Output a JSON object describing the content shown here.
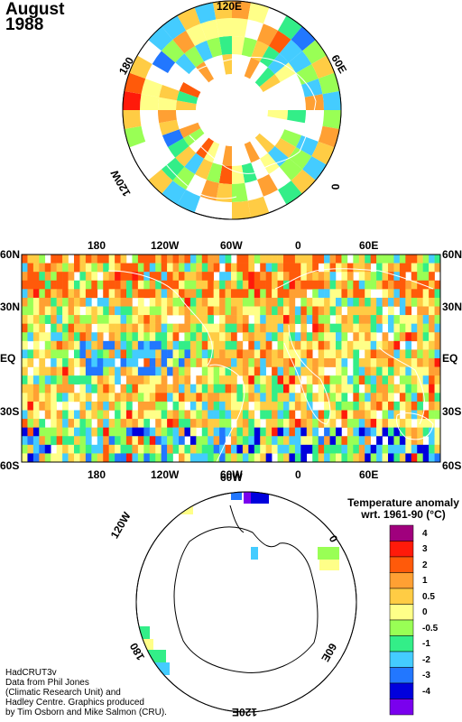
{
  "title": {
    "month": "August",
    "year": "1988"
  },
  "north_polar_labels": {
    "top": "120E",
    "upper_right": "60E",
    "right": "0",
    "upper_left": "180",
    "lower_left": "120W"
  },
  "map": {
    "top_lon_labels": [
      "180",
      "120W",
      "60W",
      "0",
      "60E"
    ],
    "bottom_lon_labels": [
      "180",
      "120W",
      "60W",
      "0",
      "60E"
    ],
    "left_lat_labels": [
      "60N",
      "30N",
      "EQ",
      "30S",
      "60S"
    ],
    "right_lat_labels": [
      "60N",
      "30N",
      "EQ",
      "30S",
      "60S"
    ]
  },
  "south_polar_labels": {
    "upper_left": "120W",
    "upper_mid": "60W",
    "right": "0",
    "lower_left": "180",
    "lower_right": "60E",
    "bottom": "120E"
  },
  "legend": {
    "title_line1": "Temperature anomaly",
    "title_line2": "wrt. 1961-90  (°C)",
    "stops": [
      {
        "label": "4",
        "color": "#a0007d"
      },
      {
        "label": "3",
        "color": "#ff1a0a"
      },
      {
        "label": "2",
        "color": "#ff5a0a"
      },
      {
        "label": "1",
        "color": "#ffa033"
      },
      {
        "label": "0.5",
        "color": "#ffcc44"
      },
      {
        "label": "0",
        "color": "#ffff88"
      },
      {
        "label": "-0.5",
        "color": "#99ff55"
      },
      {
        "label": "-1",
        "color": "#33ee88"
      },
      {
        "label": "-2",
        "color": "#44ccff"
      },
      {
        "label": "-3",
        "color": "#2277ff"
      },
      {
        "label": "-4",
        "color": "#0000dd"
      },
      {
        "label": "",
        "color": "#7a00ee"
      }
    ]
  },
  "credit": {
    "line1": "HadCRUT3v",
    "line2": "Data from Phil Jones",
    "line3": "(Climatic Research Unit) and",
    "line4": "Hadley Centre.  Graphics produced",
    "line5": "by Tim Osborn and Mike Salmon (CRU)."
  }
}
